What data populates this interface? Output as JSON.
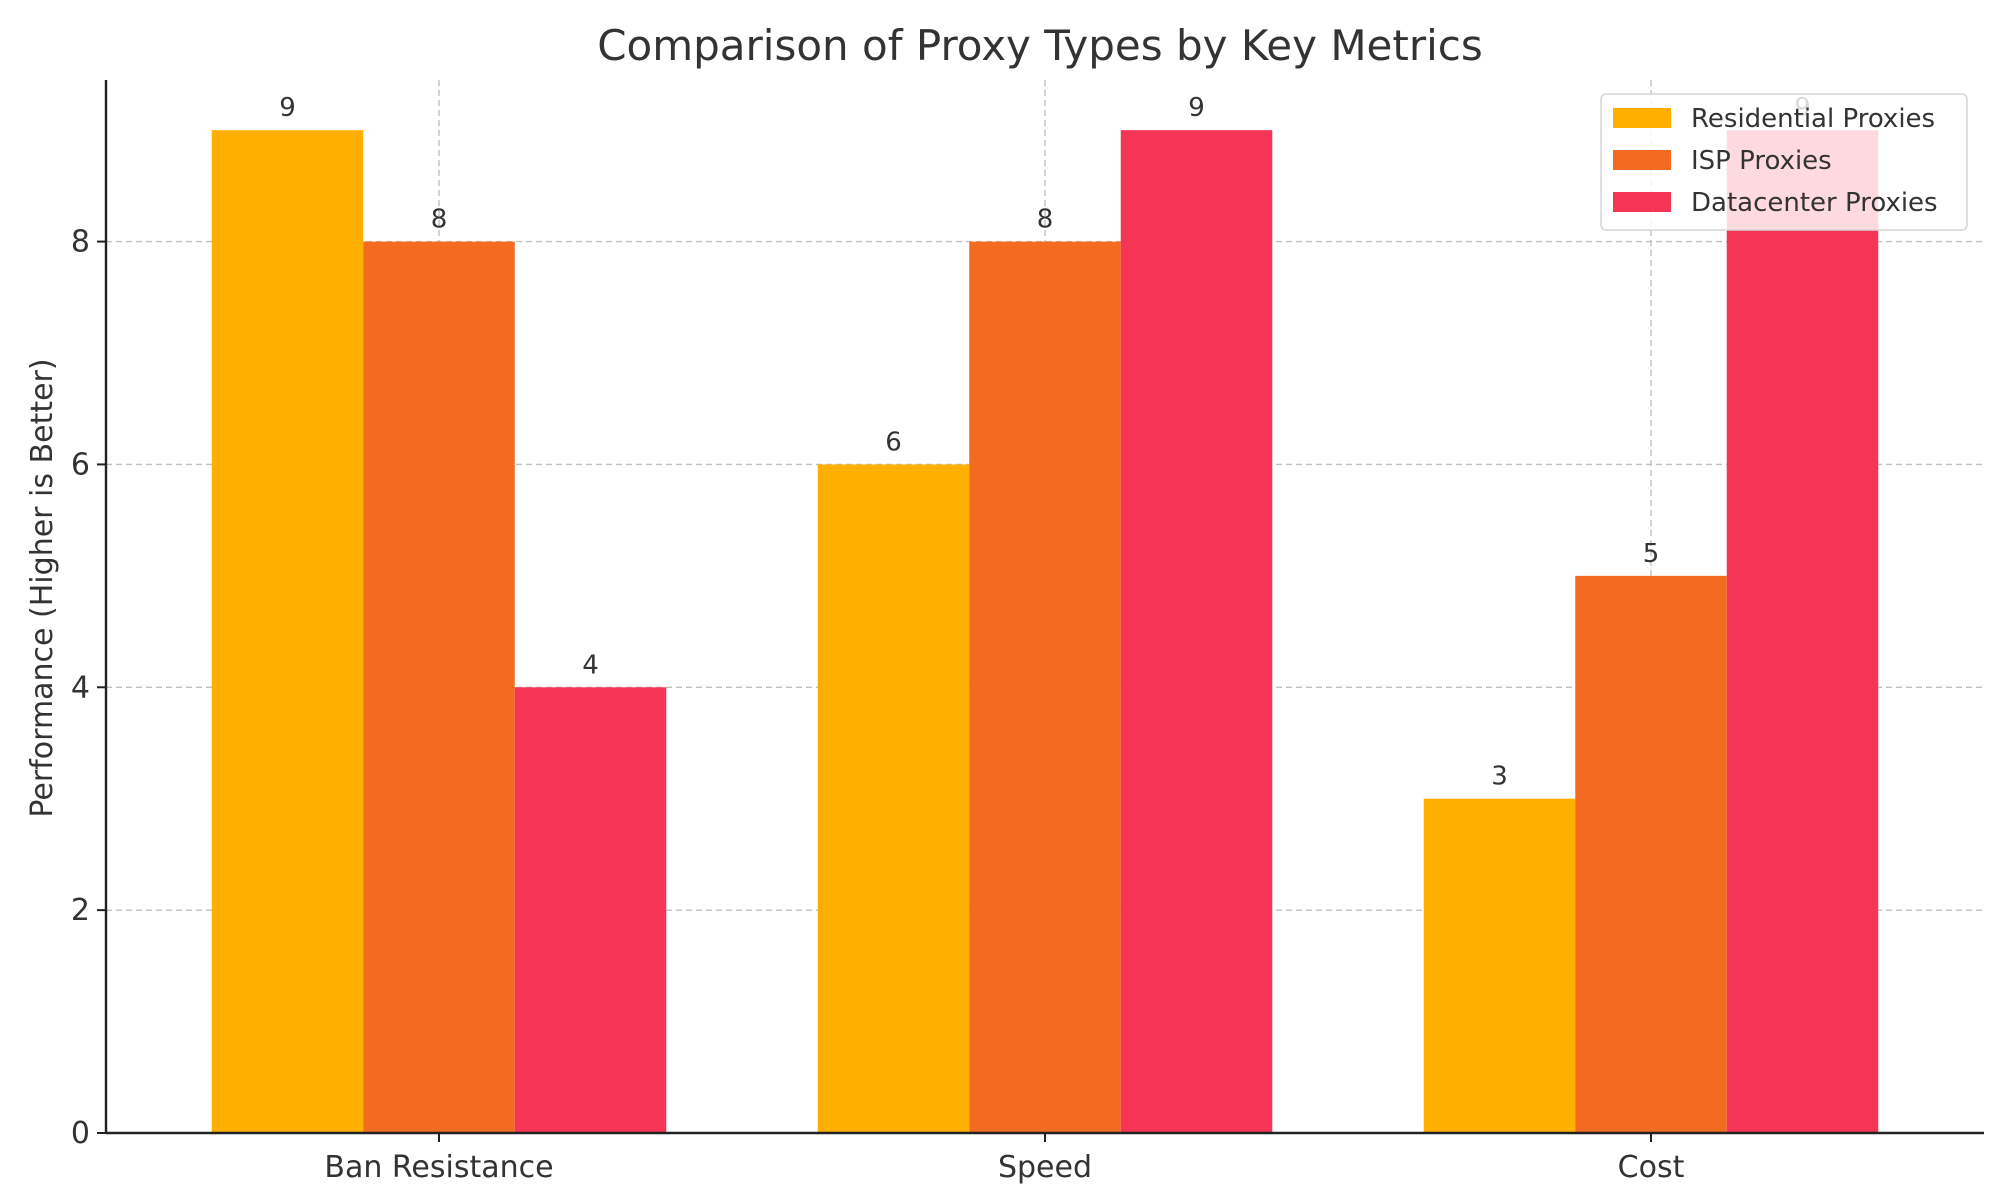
{
  "chart_data": {
    "type": "bar",
    "title": "Comparison of Proxy Types by Key Metrics",
    "xlabel": "",
    "ylabel": "Performance (Higher is Better)",
    "categories": [
      "Ban Resistance",
      "Speed",
      "Cost"
    ],
    "series": [
      {
        "name": "Residential Proxies",
        "color": "#FFAF00",
        "values": [
          9,
          6,
          3
        ]
      },
      {
        "name": "ISP Proxies",
        "color": "#F26B21",
        "values": [
          8,
          8,
          5
        ]
      },
      {
        "name": "Datacenter Proxies",
        "color": "#F63455",
        "values": [
          4,
          9,
          9
        ]
      }
    ],
    "ylim": [
      0,
      9.45
    ],
    "yticks": [
      0,
      2,
      4,
      6,
      8
    ],
    "grid": true,
    "legend_position": "top-right",
    "data_labels": true
  }
}
